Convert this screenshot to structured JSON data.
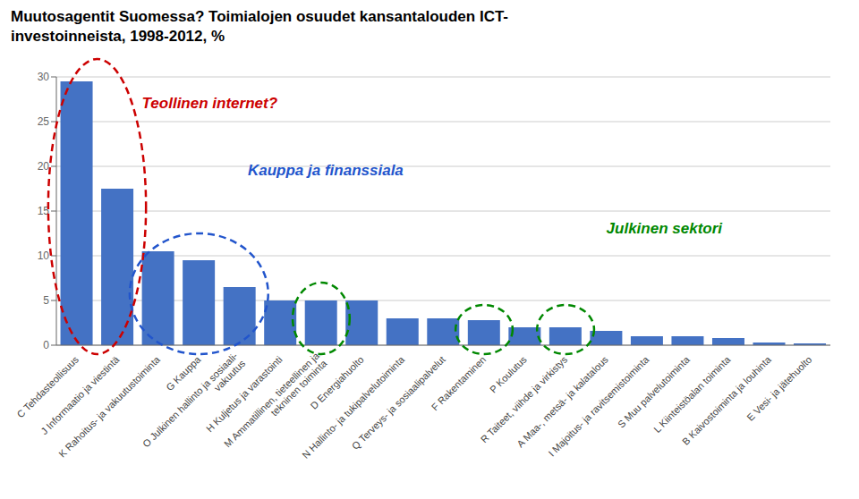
{
  "chart_data": {
    "type": "bar",
    "title": "Muutosagentit Suomessa? Toimialojen osuudet kansantalouden ICT-\ninvestoinneista, 1998-2012, %",
    "categories": [
      "C Tehdasteollisuus",
      "J Informaatio ja viestintä",
      "K Rahoitus- ja vakuutustoiminta",
      "G Kauppa",
      "O Julkinen hallinto ja sosiaali-\nvakuutus",
      "H Kuljetus ja varastointi",
      "M Ammatillinen, tieteellinen ja\ntekninen toiminta",
      "D Energiahuolto",
      "N Hallinto- ja tukipalvelutoiminta",
      "Q Terveys- ja sosiaalipalvelut",
      "F Rakentaminen",
      "P Koulutus",
      "R Taiteet, viihde ja virkistys",
      "A Maa-, metsä- ja kalatalous",
      "I Majoitus- ja ravitsemistoiminta",
      "S Muu palvelutoiminta",
      "L Kiinteistöalan toiminta",
      "B Kaivostoiminta ja louhinta",
      "E Vesi- ja jätehuolto"
    ],
    "values": [
      29.5,
      17.5,
      10.5,
      9.5,
      6.5,
      5.0,
      5.0,
      5.0,
      3.0,
      3.0,
      2.8,
      2.0,
      2.0,
      1.6,
      1.0,
      1.0,
      0.8,
      0.3,
      0.2
    ],
    "color": "#4472C4",
    "ylim": [
      0,
      30
    ],
    "yticks": [
      0,
      5,
      10,
      15,
      20,
      25,
      30
    ],
    "grid": true,
    "annotations": [
      {
        "text": "Teollinen internet?",
        "color": "#CC0000"
      },
      {
        "text": "Kauppa ja finanssiala",
        "color": "#2255CC"
      },
      {
        "text": "Julkinen sektori",
        "color": "#008800"
      }
    ]
  }
}
